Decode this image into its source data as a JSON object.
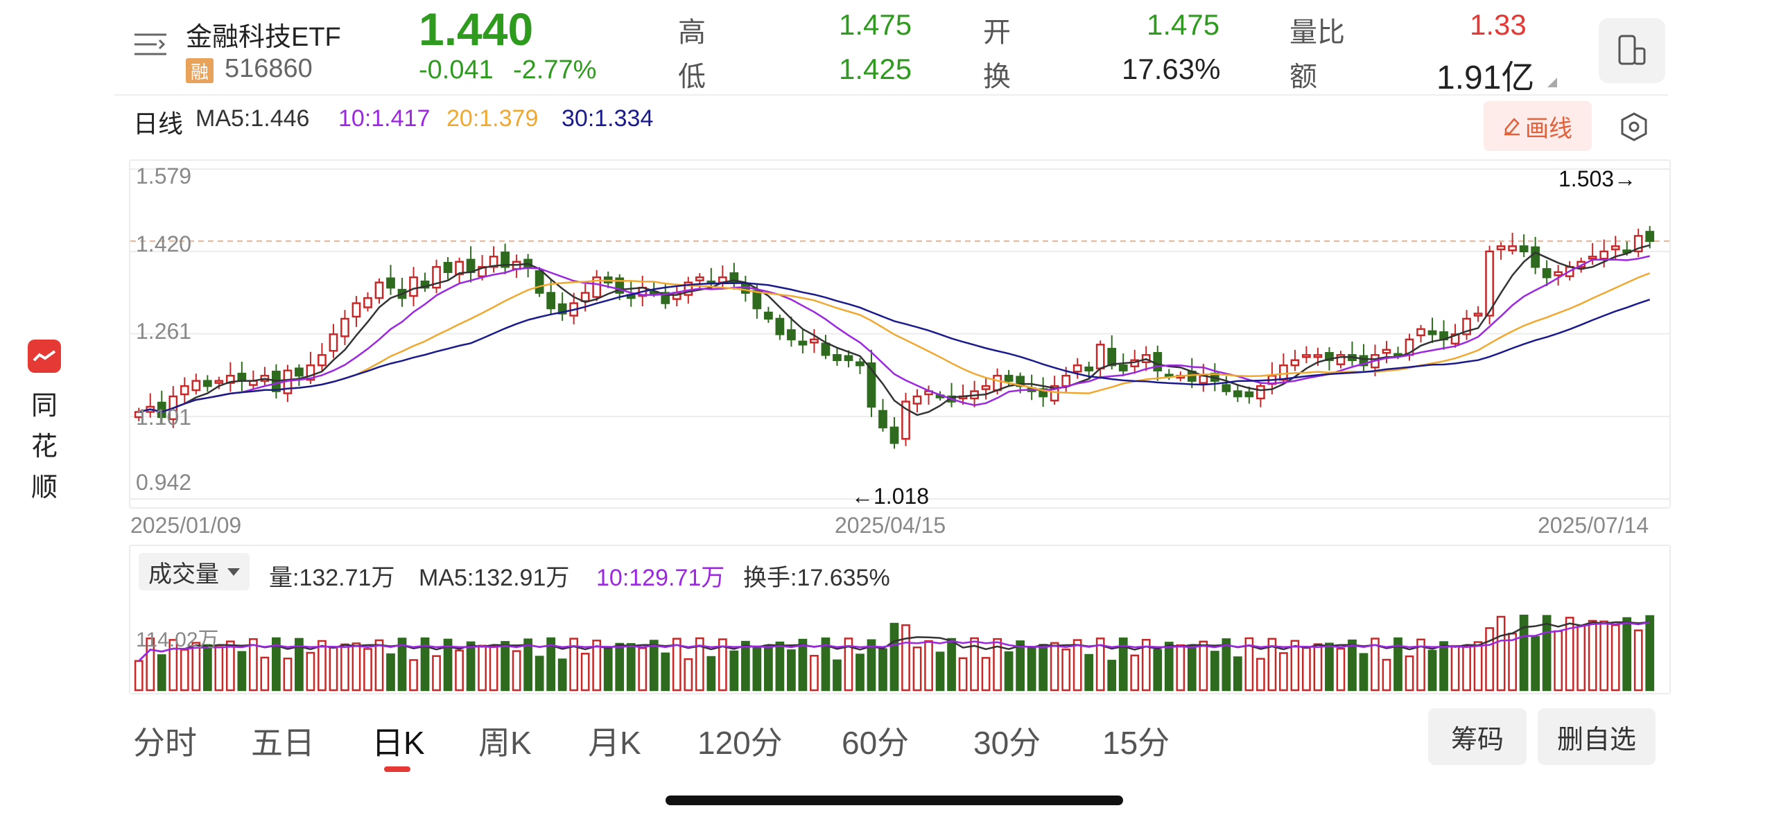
{
  "brand": {
    "name": "同花顺",
    "chars": [
      "同",
      "花",
      "顺"
    ]
  },
  "header": {
    "name": "金融科技ETF",
    "badge": "融",
    "code": "516860",
    "price": "1.440",
    "change": "-0.041",
    "change_pct": "-2.77%",
    "stats": [
      {
        "label": "高",
        "value": "1.475",
        "color": "#2e9b1f"
      },
      {
        "label": "低",
        "value": "1.425",
        "color": "#2e9b1f"
      },
      {
        "label": "开",
        "value": "1.475",
        "color": "#2e9b1f"
      },
      {
        "label": "换",
        "value": "17.63%",
        "color": "#222222"
      },
      {
        "label": "量比",
        "value": "1.33",
        "color": "#e53935"
      },
      {
        "label": "额",
        "value": "1.91亿",
        "color": "#222222"
      }
    ]
  },
  "kline": {
    "period_label": "日线",
    "ma": [
      {
        "text": "MA5:1.446",
        "color": "#333333"
      },
      {
        "text": "10:1.417",
        "color": "#9c27e0"
      },
      {
        "text": "20:1.379",
        "color": "#f0a830"
      },
      {
        "text": "30:1.334",
        "color": "#1a1a8c"
      }
    ],
    "draw_button": "画线",
    "y_ticks": [
      "1.579",
      "1.420",
      "1.261",
      "1.101",
      "0.942"
    ],
    "high_marker": "1.503→",
    "low_marker": "←1.018",
    "dates": [
      "2025/01/09",
      "2025/04/15",
      "2025/07/14"
    ]
  },
  "volume": {
    "selector": "成交量",
    "stats": [
      {
        "text": "量:132.71万",
        "color": "#333333"
      },
      {
        "text": "MA5:132.91万",
        "color": "#333333"
      },
      {
        "text": "10:129.71万",
        "color": "#9c27e0"
      },
      {
        "text": "换手:17.635%",
        "color": "#333333"
      }
    ],
    "axis_label": "114.02万"
  },
  "tabs": [
    {
      "label": "分时",
      "active": false
    },
    {
      "label": "五日",
      "active": false
    },
    {
      "label": "日K",
      "active": true
    },
    {
      "label": "周K",
      "active": false
    },
    {
      "label": "月K",
      "active": false
    },
    {
      "label": "120分",
      "active": false
    },
    {
      "label": "60分",
      "active": false
    },
    {
      "label": "30分",
      "active": false
    },
    {
      "label": "15分",
      "active": false
    }
  ],
  "actions": {
    "chips": "筹码",
    "remove": "删自选"
  },
  "colors": {
    "up": "#c62828",
    "down": "#2e6b1e",
    "ma5": "#333333",
    "ma10": "#9c27e0",
    "ma20": "#f0a830",
    "ma30": "#1a1a8c"
  },
  "chart_data": {
    "type": "candlestick",
    "y_range": [
      0.942,
      1.579
    ],
    "y_ticks": [
      1.579,
      1.42,
      1.261,
      1.101,
      0.942
    ],
    "reference_price": 1.44,
    "high": 1.503,
    "low": 1.018,
    "x_ticks": [
      "2025/01/09",
      "2025/04/15",
      "2025/07/14"
    ],
    "close_trend": [
      1.11,
      1.12,
      1.1,
      1.14,
      1.16,
      1.17,
      1.16,
      1.17,
      1.18,
      1.17,
      1.17,
      1.18,
      1.15,
      1.19,
      1.18,
      1.2,
      1.22,
      1.26,
      1.29,
      1.32,
      1.33,
      1.36,
      1.35,
      1.33,
      1.37,
      1.35,
      1.39,
      1.38,
      1.4,
      1.38,
      1.39,
      1.41,
      1.39,
      1.4,
      1.39,
      1.34,
      1.31,
      1.3,
      1.32,
      1.34,
      1.37,
      1.36,
      1.34,
      1.33,
      1.35,
      1.34,
      1.32,
      1.34,
      1.36,
      1.37,
      1.36,
      1.37,
      1.36,
      1.34,
      1.31,
      1.29,
      1.26,
      1.25,
      1.24,
      1.25,
      1.22,
      1.21,
      1.21,
      1.2,
      1.12,
      1.08,
      1.05,
      1.13,
      1.14,
      1.15,
      1.14,
      1.13,
      1.14,
      1.15,
      1.16,
      1.18,
      1.17,
      1.16,
      1.15,
      1.14,
      1.16,
      1.18,
      1.2,
      1.19,
      1.24,
      1.2,
      1.19,
      1.21,
      1.22,
      1.19,
      1.18,
      1.18,
      1.17,
      1.18,
      1.17,
      1.15,
      1.14,
      1.14,
      1.16,
      1.18,
      1.2,
      1.21,
      1.22,
      1.22,
      1.21,
      1.22,
      1.21,
      1.2,
      1.22,
      1.23,
      1.22,
      1.25,
      1.27,
      1.26,
      1.25,
      1.26,
      1.29,
      1.3,
      1.42,
      1.43,
      1.43,
      1.42,
      1.39,
      1.37,
      1.38,
      1.39,
      1.4,
      1.41,
      1.42,
      1.43,
      1.42,
      1.45,
      1.44
    ],
    "volume_ma_label": "114.02万"
  }
}
